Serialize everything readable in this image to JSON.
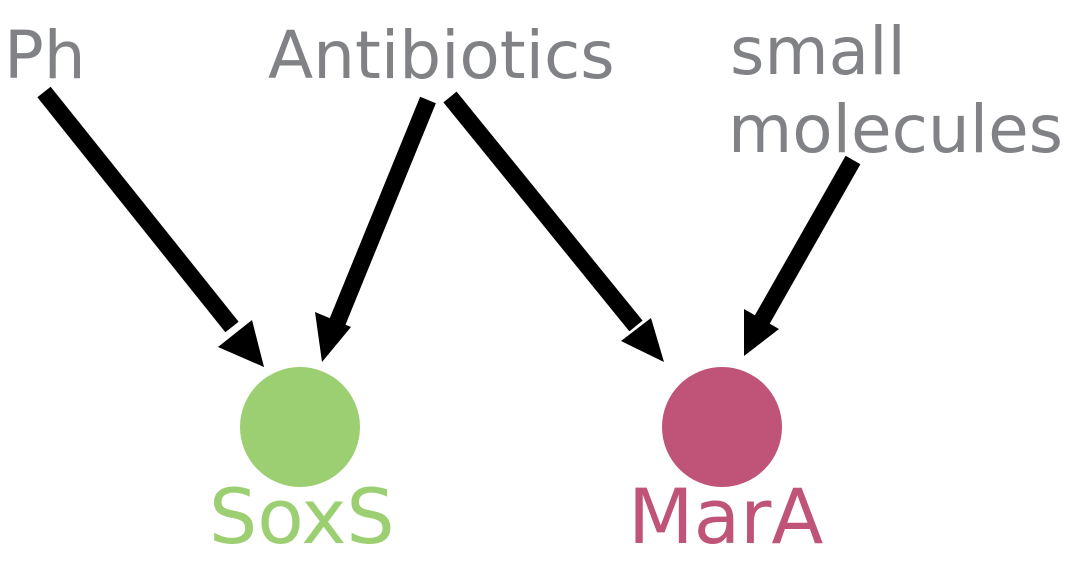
{
  "sources": {
    "ph": {
      "label": "Ph"
    },
    "antibiotics": {
      "label": "Antibiotics"
    },
    "small_molecules": {
      "line1": "small",
      "line2": "molecules"
    }
  },
  "targets": {
    "soxs": {
      "label": "SoxS",
      "color": "#9ccf72"
    },
    "mara": {
      "label": "MarA",
      "color": "#bf5478"
    }
  },
  "colors": {
    "source_text": "#808285",
    "arrow": "#000000"
  },
  "edges": [
    {
      "from": "Ph",
      "to": "SoxS"
    },
    {
      "from": "Antibiotics",
      "to": "SoxS"
    },
    {
      "from": "Antibiotics",
      "to": "MarA"
    },
    {
      "from": "small molecules",
      "to": "MarA"
    }
  ]
}
